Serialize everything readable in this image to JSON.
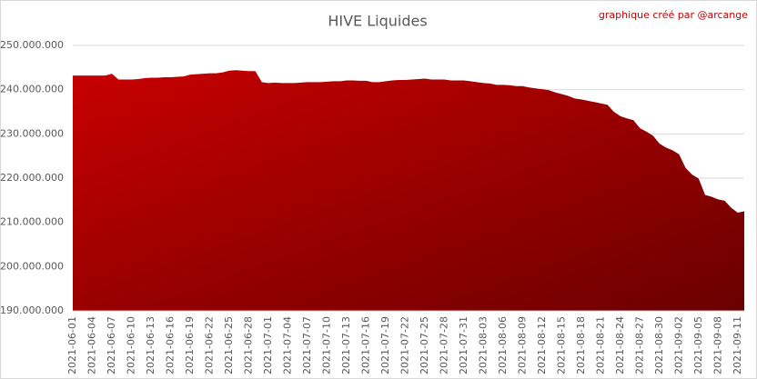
{
  "chart_data": {
    "type": "area",
    "title": "HIVE Liquides",
    "annotation": "graphique créé par @arcange",
    "color": "#b00000",
    "categories": [
      "2021-06-01",
      null,
      null,
      "2021-06-04",
      null,
      null,
      "2021-06-07",
      null,
      null,
      "2021-06-10",
      null,
      null,
      "2021-06-13",
      null,
      null,
      "2021-06-16",
      null,
      null,
      "2021-06-19",
      null,
      null,
      "2021-06-22",
      null,
      null,
      "2021-06-25",
      null,
      null,
      "2021-06-28",
      null,
      null,
      "2021-07-01",
      null,
      null,
      "2021-07-04",
      null,
      null,
      "2021-07-07",
      null,
      null,
      "2021-07-10",
      null,
      null,
      "2021-07-13",
      null,
      null,
      "2021-07-16",
      null,
      null,
      "2021-07-19",
      null,
      null,
      "2021-07-22",
      null,
      null,
      "2021-07-25",
      null,
      null,
      "2021-07-28",
      null,
      null,
      "2021-07-31",
      null,
      null,
      "2021-08-03",
      null,
      null,
      "2021-08-06",
      null,
      null,
      "2021-08-09",
      null,
      null,
      "2021-08-12",
      null,
      null,
      "2021-08-15",
      null,
      null,
      "2021-08-18",
      null,
      null,
      "2021-08-21",
      null,
      null,
      "2021-08-24",
      null,
      null,
      "2021-08-27",
      null,
      null,
      "2021-08-30",
      null,
      null,
      "2021-09-02",
      null,
      null,
      "2021-09-05",
      null,
      null,
      "2021-09-08",
      null,
      null,
      "2021-09-11",
      null
    ],
    "values": [
      243200000,
      243200000,
      243200000,
      243200000,
      243200000,
      243200000,
      243600000,
      242300000,
      242300000,
      242300000,
      242400000,
      242600000,
      242700000,
      242700000,
      242800000,
      242800000,
      242900000,
      243000000,
      243400000,
      243500000,
      243600000,
      243700000,
      243700000,
      243900000,
      244300000,
      244400000,
      244300000,
      244200000,
      244200000,
      241700000,
      241500000,
      241600000,
      241500000,
      241500000,
      241500000,
      241600000,
      241700000,
      241700000,
      241700000,
      241800000,
      241900000,
      241900000,
      242100000,
      242100000,
      242000000,
      242000000,
      241700000,
      241700000,
      241900000,
      242100000,
      242200000,
      242200000,
      242300000,
      242400000,
      242500000,
      242300000,
      242300000,
      242300000,
      242100000,
      242100000,
      242100000,
      241900000,
      241700000,
      241500000,
      241400000,
      241100000,
      241100000,
      241000000,
      240800000,
      240800000,
      240500000,
      240300000,
      240100000,
      239900000,
      239400000,
      239000000,
      238600000,
      238000000,
      237800000,
      237500000,
      237200000,
      236900000,
      236600000,
      235000000,
      234000000,
      233500000,
      233100000,
      231300000,
      230500000,
      229600000,
      227800000,
      226900000,
      226300000,
      225400000,
      222300000,
      220800000,
      219900000,
      216200000,
      215800000,
      215200000,
      214900000,
      213300000,
      212200000,
      212500000
    ],
    "ylim": [
      190000000,
      250000000
    ],
    "yticks": [
      {
        "value": 190000000,
        "label": "190.000.000"
      },
      {
        "value": 200000000,
        "label": "200.000.000"
      },
      {
        "value": 210000000,
        "label": "210.000.000"
      },
      {
        "value": 220000000,
        "label": "220.000.000"
      },
      {
        "value": 230000000,
        "label": "230.000.000"
      },
      {
        "value": 240000000,
        "label": "240.000.000"
      },
      {
        "value": 250000000,
        "label": "250.000.000"
      }
    ],
    "grid": true
  }
}
